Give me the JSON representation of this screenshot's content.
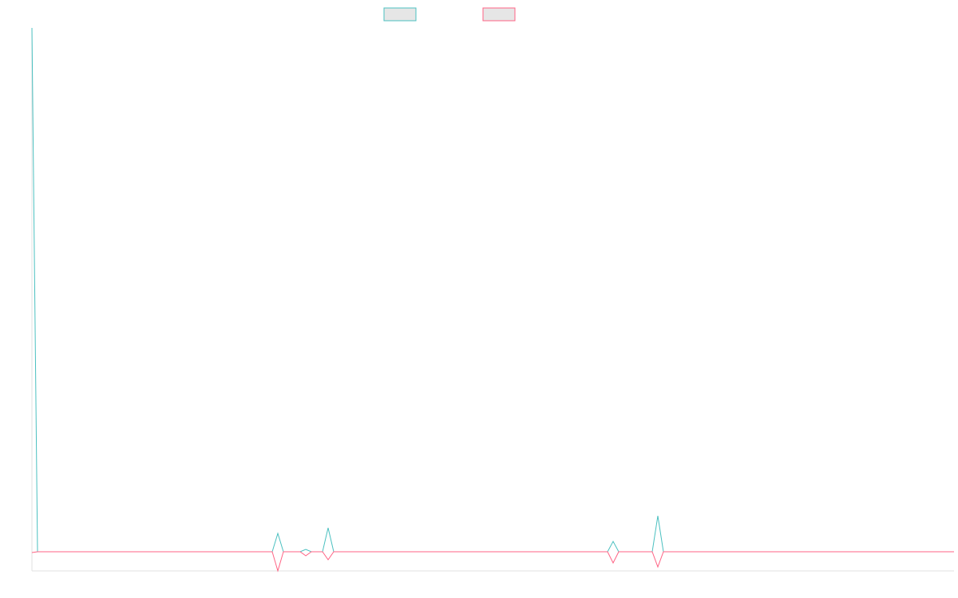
{
  "chart_data": {
    "type": "line",
    "ylim": [
      -24,
      657
    ],
    "series": [
      {
        "color": "#4bc0c0",
        "values": [
          657,
          0,
          0,
          0,
          0,
          0,
          0,
          0,
          0,
          0,
          0,
          0,
          0,
          0,
          0,
          0,
          0,
          0,
          0,
          0,
          0,
          0,
          0,
          0,
          0,
          0,
          0,
          0,
          0,
          0,
          0,
          0,
          0,
          0,
          0,
          0,
          0,
          0,
          0,
          0,
          0,
          0,
          0,
          0,
          23,
          0,
          0,
          0,
          0,
          3,
          0,
          0,
          0,
          30,
          0,
          0,
          0,
          0,
          0,
          0,
          0,
          0,
          0,
          0,
          0,
          0,
          0,
          0,
          0,
          0,
          0,
          0,
          0,
          0,
          0,
          0,
          0,
          0,
          0,
          0,
          0,
          0,
          0,
          0,
          0,
          0,
          0,
          0,
          0,
          0,
          0,
          0,
          0,
          0,
          0,
          0,
          0,
          0,
          0,
          0,
          0,
          0,
          0,
          0,
          13,
          0,
          0,
          0,
          0,
          0,
          0,
          0,
          45,
          0,
          0,
          0,
          0,
          0,
          0,
          0,
          0,
          0,
          0,
          0,
          0,
          0,
          0,
          0,
          0,
          0,
          0,
          0,
          0,
          0,
          0,
          0,
          0,
          0,
          0,
          0,
          0,
          0,
          0,
          0,
          0,
          0,
          0,
          0,
          0,
          0,
          0,
          0,
          0,
          0,
          0,
          0,
          0,
          0,
          0,
          0,
          0,
          0,
          0,
          0,
          0,
          0
        ]
      },
      {
        "color": "#ff6384",
        "values": [
          -1,
          0,
          0,
          0,
          0,
          0,
          0,
          0,
          0,
          0,
          0,
          0,
          0,
          0,
          0,
          0,
          0,
          0,
          0,
          0,
          0,
          0,
          0,
          0,
          0,
          0,
          0,
          0,
          0,
          0,
          0,
          0,
          0,
          0,
          0,
          0,
          0,
          0,
          0,
          0,
          0,
          0,
          0,
          0,
          -24,
          0,
          0,
          0,
          0,
          -5,
          0,
          0,
          0,
          -10,
          0,
          0,
          0,
          0,
          0,
          0,
          0,
          0,
          0,
          0,
          0,
          0,
          0,
          0,
          0,
          0,
          0,
          0,
          0,
          0,
          0,
          0,
          0,
          0,
          0,
          0,
          0,
          0,
          0,
          0,
          0,
          0,
          0,
          0,
          0,
          0,
          0,
          0,
          0,
          0,
          0,
          0,
          0,
          0,
          0,
          0,
          0,
          0,
          0,
          0,
          -14,
          0,
          0,
          0,
          0,
          0,
          0,
          0,
          -19,
          0,
          0,
          0,
          0,
          0,
          0,
          0,
          0,
          0,
          0,
          0,
          0,
          0,
          0,
          0,
          0,
          0,
          0,
          0,
          0,
          0,
          0,
          0,
          0,
          0,
          0,
          0,
          0,
          0,
          0,
          0,
          0,
          0,
          0,
          0,
          0,
          0,
          0,
          0,
          0,
          0,
          0,
          0,
          0,
          0,
          0,
          0,
          0,
          0,
          0,
          0,
          0,
          0
        ]
      }
    ]
  }
}
